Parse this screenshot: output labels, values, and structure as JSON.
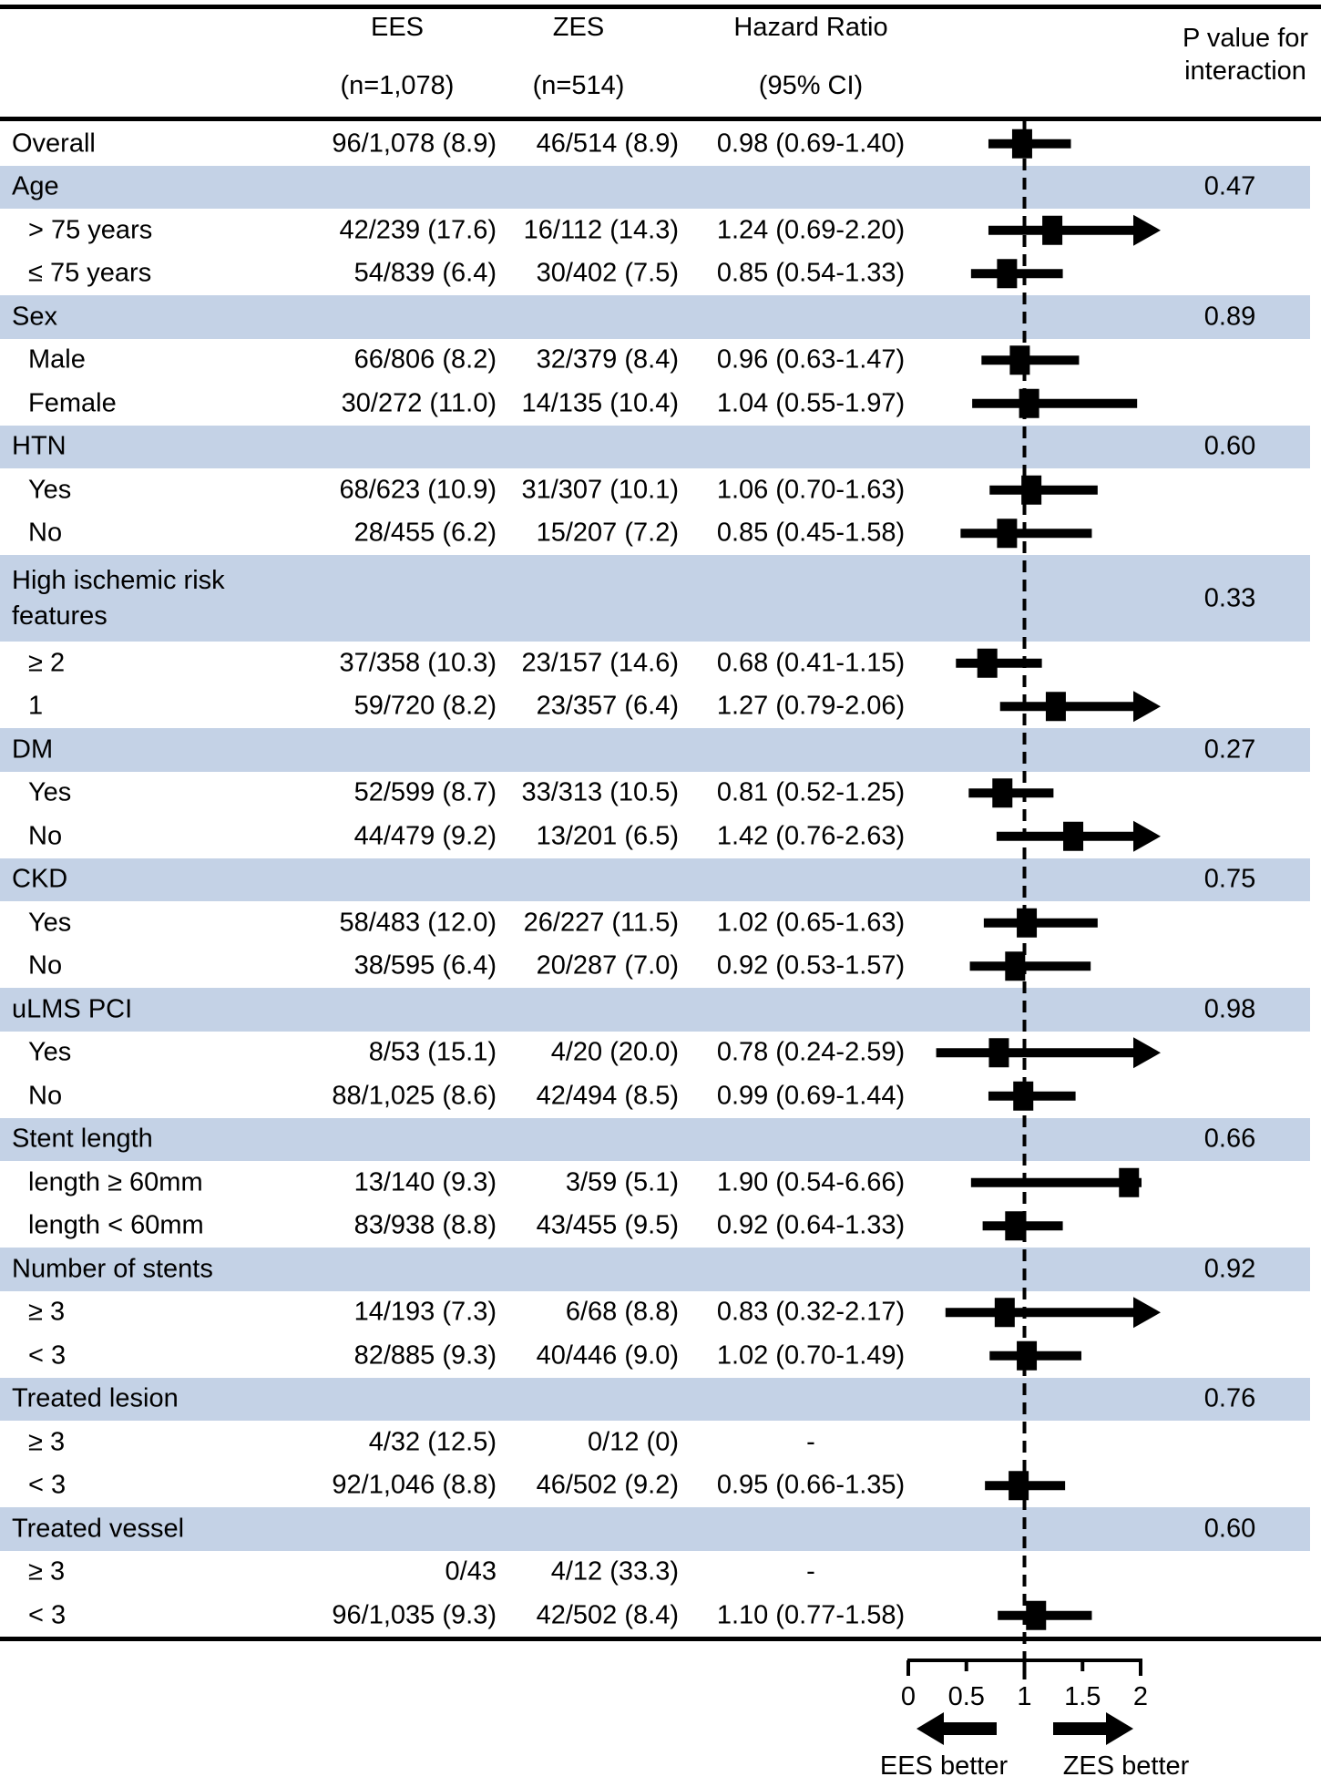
{
  "header": {
    "ees_line1": "EES",
    "ees_line2": "(n=1,078)",
    "zes_line1": "ZES",
    "zes_line2": "(n=514)",
    "hr_line1": "Hazard Ratio",
    "hr_line2": "(95% CI)",
    "p_line1": "P value for",
    "p_line2": "interaction"
  },
  "footer": {
    "left_label": "EES better",
    "right_label": "ZES better"
  },
  "colors": {
    "band": "#c4d2e6",
    "ink": "#000000"
  },
  "chart_data": {
    "type": "forest",
    "xlim": [
      0,
      2
    ],
    "reference_line": 1,
    "axis_ticks": [
      "0",
      "0.5",
      "1",
      "1.5",
      "2"
    ],
    "rows": [
      {
        "kind": "overall",
        "label": "Overall",
        "ees": "96/1,078 (8.9)",
        "zes": "46/514 (8.9)",
        "hr_text": "0.98 (0.69-1.40)",
        "hr": 0.98,
        "lo": 0.69,
        "hi": 1.4
      },
      {
        "kind": "category",
        "label": "Age",
        "p": "0.47"
      },
      {
        "kind": "subgroup",
        "label": "> 75 years",
        "ees": "42/239 (17.6)",
        "zes": "16/112 (14.3)",
        "hr_text": "1.24 (0.69-2.20)",
        "hr": 1.24,
        "lo": 0.69,
        "hi": 2.2,
        "clip": "arrow"
      },
      {
        "kind": "subgroup",
        "label": "≤ 75 years",
        "ees": "54/839 (6.4)",
        "zes": "30/402 (7.5)",
        "hr_text": "0.85 (0.54-1.33)",
        "hr": 0.85,
        "lo": 0.54,
        "hi": 1.33
      },
      {
        "kind": "category",
        "label": "Sex",
        "p": "0.89"
      },
      {
        "kind": "subgroup",
        "label": "Male",
        "ees": "66/806 (8.2)",
        "zes": "32/379 (8.4)",
        "hr_text": "0.96 (0.63-1.47)",
        "hr": 0.96,
        "lo": 0.63,
        "hi": 1.47
      },
      {
        "kind": "subgroup",
        "label": "Female",
        "ees": "30/272 (11.0)",
        "zes": "14/135 (10.4)",
        "hr_text": "1.04 (0.55-1.97)",
        "hr": 1.04,
        "lo": 0.55,
        "hi": 1.97
      },
      {
        "kind": "category",
        "label": "HTN",
        "p": "0.60"
      },
      {
        "kind": "subgroup",
        "label": "Yes",
        "ees": "68/623 (10.9)",
        "zes": "31/307 (10.1)",
        "hr_text": "1.06 (0.70-1.63)",
        "hr": 1.06,
        "lo": 0.7,
        "hi": 1.63
      },
      {
        "kind": "subgroup",
        "label": "No",
        "ees": "28/455 (6.2)",
        "zes": "15/207 (7.2)",
        "hr_text": "0.85 (0.45-1.58)",
        "hr": 0.85,
        "lo": 0.45,
        "hi": 1.58
      },
      {
        "kind": "category",
        "label": "High ischemic risk",
        "label2": "features",
        "p": "0.33",
        "tall": true
      },
      {
        "kind": "subgroup",
        "label": "≥ 2",
        "ees": "37/358 (10.3)",
        "zes": "23/157 (14.6)",
        "hr_text": "0.68 (0.41-1.15)",
        "hr": 0.68,
        "lo": 0.41,
        "hi": 1.15
      },
      {
        "kind": "subgroup",
        "label": "1",
        "ees": "59/720 (8.2)",
        "zes": "23/357 (6.4)",
        "hr_text": "1.27 (0.79-2.06)",
        "hr": 1.27,
        "lo": 0.79,
        "hi": 2.06,
        "clip": "arrow"
      },
      {
        "kind": "category",
        "label": "DM",
        "p": "0.27"
      },
      {
        "kind": "subgroup",
        "label": "Yes",
        "ees": "52/599 (8.7)",
        "zes": "33/313 (10.5)",
        "hr_text": "0.81 (0.52-1.25)",
        "hr": 0.81,
        "lo": 0.52,
        "hi": 1.25
      },
      {
        "kind": "subgroup",
        "label": "No",
        "ees": "44/479 (9.2)",
        "zes": "13/201 (6.5)",
        "hr_text": "1.42 (0.76-2.63)",
        "hr": 1.42,
        "lo": 0.76,
        "hi": 2.63,
        "clip": "arrow"
      },
      {
        "kind": "category",
        "label": "CKD",
        "p": "0.75"
      },
      {
        "kind": "subgroup",
        "label": "Yes",
        "ees": "58/483 (12.0)",
        "zes": "26/227 (11.5)",
        "hr_text": "1.02 (0.65-1.63)",
        "hr": 1.02,
        "lo": 0.65,
        "hi": 1.63
      },
      {
        "kind": "subgroup",
        "label": "No",
        "ees": "38/595 (6.4)",
        "zes": "20/287 (7.0)",
        "hr_text": "0.92 (0.53-1.57)",
        "hr": 0.92,
        "lo": 0.53,
        "hi": 1.57
      },
      {
        "kind": "category",
        "label": "uLMS PCI",
        "p": "0.98"
      },
      {
        "kind": "subgroup",
        "label": "Yes",
        "ees": "8/53 (15.1)",
        "zes": "4/20 (20.0)",
        "hr_text": "0.78 (0.24-2.59)",
        "hr": 0.78,
        "lo": 0.24,
        "hi": 2.59,
        "clip": "arrow"
      },
      {
        "kind": "subgroup",
        "label": "No",
        "ees": "88/1,025 (8.6)",
        "zes": "42/494 (8.5)",
        "hr_text": "0.99 (0.69-1.44)",
        "hr": 0.99,
        "lo": 0.69,
        "hi": 1.44
      },
      {
        "kind": "category",
        "label": "Stent length",
        "p": "0.66"
      },
      {
        "kind": "subgroup",
        "label": "length ≥ 60mm",
        "ees": "13/140 (9.3)",
        "zes": "3/59 (5.1)",
        "hr_text": "1.90 (0.54-6.66)",
        "hr": 1.9,
        "lo": 0.54,
        "hi": 6.66,
        "clip": "end"
      },
      {
        "kind": "subgroup",
        "label": "length < 60mm",
        "ees": "83/938 (8.8)",
        "zes": "43/455 (9.5)",
        "hr_text": "0.92 (0.64-1.33)",
        "hr": 0.92,
        "lo": 0.64,
        "hi": 1.33
      },
      {
        "kind": "category",
        "label": "Number of stents",
        "p": "0.92"
      },
      {
        "kind": "subgroup",
        "label": "≥ 3",
        "ees": "14/193 (7.3)",
        "zes": "6/68 (8.8)",
        "hr_text": "0.83 (0.32-2.17)",
        "hr": 0.83,
        "lo": 0.32,
        "hi": 2.17,
        "clip": "arrow"
      },
      {
        "kind": "subgroup",
        "label": "< 3",
        "ees": "82/885 (9.3)",
        "zes": "40/446 (9.0)",
        "hr_text": "1.02 (0.70-1.49)",
        "hr": 1.02,
        "lo": 0.7,
        "hi": 1.49
      },
      {
        "kind": "category",
        "label": "Treated lesion",
        "p": "0.76"
      },
      {
        "kind": "subgroup",
        "label": "≥ 3",
        "ees": "4/32 (12.5)",
        "zes": "0/12 (0)",
        "hr_text": "-"
      },
      {
        "kind": "subgroup",
        "label": "< 3",
        "ees": "92/1,046 (8.8)",
        "zes": "46/502 (9.2)",
        "hr_text": "0.95 (0.66-1.35)",
        "hr": 0.95,
        "lo": 0.66,
        "hi": 1.35
      },
      {
        "kind": "category",
        "label": "Treated vessel",
        "p": "0.60"
      },
      {
        "kind": "subgroup",
        "label": "≥ 3",
        "ees": "0/43",
        "zes": "4/12 (33.3)",
        "hr_text": "-"
      },
      {
        "kind": "subgroup",
        "label": "< 3",
        "ees": "96/1,035 (9.3)",
        "zes": "42/502 (8.4)",
        "hr_text": "1.10 (0.77-1.58)",
        "hr": 1.1,
        "lo": 0.77,
        "hi": 1.58
      }
    ]
  }
}
